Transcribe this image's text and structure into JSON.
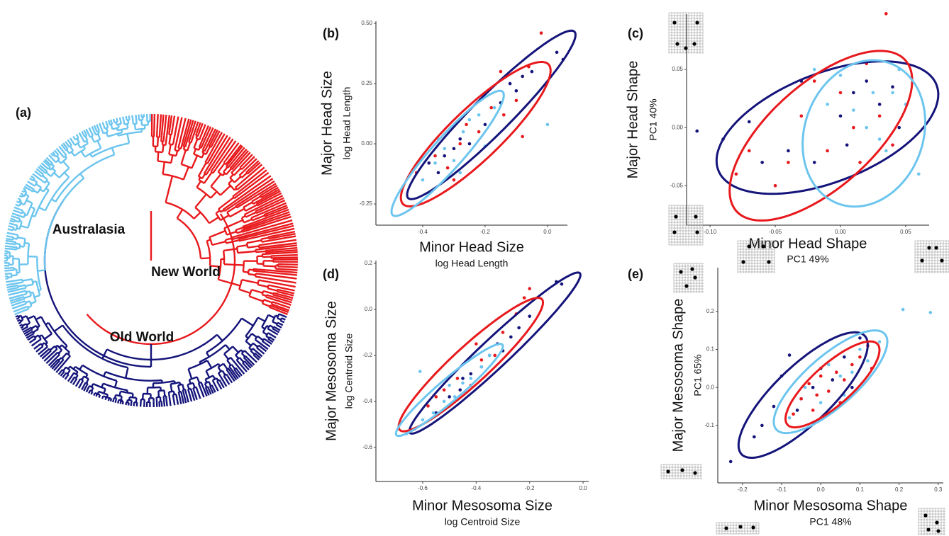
{
  "chart_data": [
    {
      "type": "tree",
      "label": "(a)",
      "clades": [
        {
          "label": "Australasia",
          "color": "#6cc5ee"
        },
        {
          "label": "New World",
          "color": "#e8191c"
        },
        {
          "label": "Old World",
          "color": "#14147a"
        }
      ]
    },
    {
      "type": "scatter",
      "label": "(b)",
      "ylabel": "Major Head Size",
      "ylabel_sub": "log Head Length",
      "xlabel": "Minor Head Size",
      "xlabel_sub": "log Head Length",
      "xlim": [
        -0.55,
        0.064
      ],
      "ylim": [
        -0.338,
        0.509
      ],
      "xticks": [
        -0.4,
        -0.2,
        {
          "value": 0,
          "label": "0.0"
        }
      ],
      "yticks": [
        {
          "value": 0.5,
          "label": "0.50"
        },
        0.25,
        {
          "value": 0,
          "label": "0.00"
        },
        -0.25
      ],
      "series": [
        {
          "color": "#14147a",
          "x": [
            -0.38,
            -0.33,
            -0.3,
            -0.28,
            -0.25,
            -0.2,
            -0.15,
            -0.1,
            -0.08,
            -0.05,
            0.03,
            0.05,
            -0.35,
            -0.12
          ],
          "y": [
            -0.08,
            -0.05,
            -0.02,
            0.02,
            0,
            0.08,
            0.17,
            0.22,
            0.28,
            0.3,
            0.38,
            0.35,
            -0.12,
            0.25
          ],
          "ellipse": {
            "x": -0.18,
            "y": 0.12,
            "x_halfwidth": 0.27,
            "y_halfheight": 0.35,
            "r": 0.95
          }
        },
        {
          "color": "#e8191c",
          "x": [
            -0.42,
            -0.36,
            -0.32,
            -0.28,
            -0.26,
            -0.22,
            -0.18,
            -0.14,
            -0.1,
            -0.06,
            -0.08,
            -0.15,
            -0.02,
            -0.3
          ],
          "y": [
            -0.12,
            -0.05,
            -0.1,
            0,
            0.08,
            0.05,
            0.15,
            0.12,
            0.18,
            0.32,
            0.03,
            0.3,
            0.46,
            -0.15
          ],
          "ellipse": {
            "x": -0.23,
            "y": 0.04,
            "x_halfwidth": 0.24,
            "y_halfheight": 0.3,
            "r": 0.88
          }
        },
        {
          "color": "#6cc5ee",
          "x": [
            -0.4,
            -0.36,
            -0.33,
            -0.3,
            -0.27,
            -0.25,
            -0.22,
            -0.2,
            -0.35,
            -0.17,
            0,
            -0.28
          ],
          "y": [
            -0.15,
            -0.08,
            -0.02,
            -0.07,
            0.05,
            0.1,
            0.12,
            -0.01,
            0.02,
            0.15,
            0.08,
            -0.12
          ],
          "ellipse": {
            "x": -0.32,
            "y": -0.04,
            "x_halfwidth": 0.18,
            "y_halfheight": 0.26,
            "r": 0.93
          }
        }
      ]
    },
    {
      "type": "scatter",
      "label": "(c)",
      "ylabel": "Major Head Shape",
      "ylabel_sub": "PC1 40%",
      "xlabel": "Minor Head Shape",
      "xlabel_sub": "PC1 49%",
      "xlim": [
        -0.118,
        0.068
      ],
      "ylim": [
        -0.084,
        0.0976
      ],
      "xticks": [
        {
          "value": -0.1,
          "label": "-0.10"
        },
        -0.05,
        {
          "value": 0,
          "label": "0.00"
        },
        0.05
      ],
      "yticks": [
        0.05,
        {
          "value": 0,
          "label": "0.00"
        },
        -0.05
      ],
      "series": [
        {
          "color": "#14147a",
          "x": [
            -0.11,
            -0.09,
            -0.06,
            -0.04,
            -0.02,
            0,
            0.01,
            0.02,
            0.03,
            0.04,
            -0.03,
            0.005,
            0.045,
            -0.07
          ],
          "y": [
            -0.003,
            -0.01,
            -0.03,
            -0.02,
            -0.03,
            0.01,
            0.03,
            0.04,
            0.02,
            0.035,
            0.04,
            -0.015,
            0,
            0.005
          ],
          "ellipse": {
            "x": -0.01,
            "y": 0,
            "x_halfwidth": 0.085,
            "y_halfheight": 0.057,
            "r": 0.5
          }
        },
        {
          "color": "#e8191c",
          "x": [
            -0.08,
            -0.07,
            -0.05,
            -0.04,
            -0.03,
            -0.01,
            0,
            0.01,
            0.02,
            0.03,
            0.035,
            0.04,
            -0.02,
            0.015
          ],
          "y": [
            -0.04,
            -0.02,
            -0.05,
            -0.03,
            0.01,
            -0.02,
            0.03,
            0,
            0.055,
            0.01,
            0.098,
            -0.015,
            0.04,
            -0.03
          ],
          "ellipse": {
            "x": -0.015,
            "y": -0.007,
            "x_halfwidth": 0.07,
            "y_halfheight": 0.073,
            "r": 0.65
          }
        },
        {
          "color": "#6cc5ee",
          "x": [
            -0.01,
            0,
            0.01,
            0.02,
            0.025,
            0.03,
            0.04,
            0.05,
            0.06,
            0.045,
            0.035,
            -0.02
          ],
          "y": [
            0.02,
            0.045,
            0.015,
            0,
            0.03,
            -0.01,
            0.03,
            0.02,
            -0.04,
            0.05,
            -0.02,
            0.05
          ],
          "ellipse": {
            "x": 0.018,
            "y": -0.005,
            "x_halfwidth": 0.047,
            "y_halfheight": 0.063,
            "r": 0.15
          }
        }
      ]
    },
    {
      "type": "scatter",
      "label": "(d)",
      "ylabel": "Major Mesosoma Size",
      "ylabel_sub": "log Centroid Size",
      "xlabel": "Minor Mesosoma Size",
      "xlabel_sub": "log Centroid Size",
      "xlim": [
        -0.775,
        0.021
      ],
      "ylim": [
        -0.748,
        0.212
      ],
      "xticks": [
        -0.6,
        -0.4,
        -0.2,
        {
          "value": 0,
          "label": "0.0"
        }
      ],
      "yticks": [
        0.2,
        {
          "value": 0,
          "label": "0.0"
        },
        -0.2,
        -0.4,
        -0.6
      ],
      "series": [
        {
          "color": "#14147a",
          "x": [
            -0.55,
            -0.5,
            -0.46,
            -0.42,
            -0.38,
            -0.35,
            -0.3,
            -0.27,
            -0.24,
            -0.2,
            -0.1,
            -0.08,
            -0.32,
            -0.45
          ],
          "y": [
            -0.45,
            -0.38,
            -0.35,
            -0.28,
            -0.25,
            -0.2,
            -0.18,
            -0.12,
            -0.08,
            -0.03,
            0.12,
            0.11,
            -0.15,
            -0.3
          ],
          "ellipse": {
            "x": -0.33,
            "y": -0.19,
            "x_halfwidth": 0.32,
            "y_halfheight": 0.35,
            "r": 0.97
          }
        },
        {
          "color": "#e8191c",
          "x": [
            -0.63,
            -0.58,
            -0.55,
            -0.5,
            -0.47,
            -0.42,
            -0.38,
            -0.33,
            -0.3,
            -0.25,
            -0.22,
            -0.2,
            -0.4,
            -0.52
          ],
          "y": [
            -0.52,
            -0.42,
            -0.38,
            -0.42,
            -0.3,
            -0.33,
            -0.22,
            -0.2,
            -0.1,
            -0.02,
            0.05,
            0.09,
            -0.15,
            -0.35
          ],
          "ellipse": {
            "x": -0.42,
            "y": -0.24,
            "x_halfwidth": 0.27,
            "y_halfheight": 0.29,
            "r": 0.93
          }
        },
        {
          "color": "#6cc5ee",
          "x": [
            -0.61,
            -0.6,
            -0.56,
            -0.52,
            -0.48,
            -0.45,
            -0.42,
            -0.38,
            -0.35,
            -0.5,
            -0.44,
            -0.66
          ],
          "y": [
            -0.27,
            -0.48,
            -0.45,
            -0.4,
            -0.38,
            -0.32,
            -0.3,
            -0.25,
            -0.2,
            -0.33,
            -0.36,
            -0.54
          ],
          "ellipse": {
            "x": -0.5,
            "y": -0.35,
            "x_halfwidth": 0.2,
            "y_halfheight": 0.2,
            "r": 0.95
          }
        }
      ]
    },
    {
      "type": "scatter",
      "label": "(e)",
      "ylabel": "Major Mesosoma Shape",
      "ylabel_sub": "PC1 65%",
      "xlabel": "Minor Mesosoma Shape",
      "xlabel_sub": "PC1 48%",
      "xlim": [
        -0.263,
        0.313
      ],
      "ylim": [
        -0.251,
        0.315
      ],
      "xticks": [
        -0.2,
        -0.1,
        {
          "value": 0,
          "label": "0.0"
        },
        0.1,
        0.2,
        0.3
      ],
      "yticks": [
        0.2,
        0.1,
        {
          "value": 0,
          "label": "0.0"
        },
        -0.1
      ],
      "series": [
        {
          "color": "#14147a",
          "x": [
            -0.23,
            -0.17,
            -0.15,
            -0.12,
            -0.1,
            -0.08,
            -0.05,
            -0.02,
            0,
            0.03,
            0.06,
            0.1,
            -0.06,
            0.08
          ],
          "y": [
            -0.195,
            -0.13,
            -0.1,
            -0.05,
            0.03,
            0.085,
            -0.03,
            0,
            0.05,
            0.02,
            0.08,
            0.13,
            -0.06,
            0
          ],
          "ellipse": {
            "x": -0.045,
            "y": -0.02,
            "x_halfwidth": 0.165,
            "y_halfheight": 0.165,
            "r": 0.8
          }
        },
        {
          "color": "#6cc5ee",
          "x": [
            -0.04,
            0,
            0.02,
            0.05,
            0.08,
            0.1,
            0.12,
            0.15,
            0.21,
            0.28,
            -0.08,
            0.06
          ],
          "y": [
            0,
            -0.04,
            0.06,
            0.03,
            0.04,
            0.1,
            0.07,
            0.12,
            0.205,
            0.197,
            -0.08,
            -0.02
          ],
          "ellipse": {
            "x": 0.025,
            "y": 0.015,
            "x_halfwidth": 0.145,
            "y_halfheight": 0.135,
            "r": 0.78
          }
        },
        {
          "color": "#e8191c",
          "x": [
            -0.07,
            -0.05,
            -0.03,
            -0.01,
            0,
            0.02,
            0.04,
            0.06,
            0.08,
            0.1,
            0.12,
            0.13,
            -0.02,
            0.05
          ],
          "y": [
            -0.07,
            -0.03,
            0.01,
            -0.02,
            0.03,
            -0.01,
            0.04,
            0.02,
            0.06,
            0.08,
            0.11,
            0.05,
            -0.06,
            -0.04
          ],
          "ellipse": {
            "x": 0.03,
            "y": 0.008,
            "x_halfwidth": 0.12,
            "y_halfheight": 0.113,
            "r": 0.8
          }
        }
      ]
    }
  ]
}
